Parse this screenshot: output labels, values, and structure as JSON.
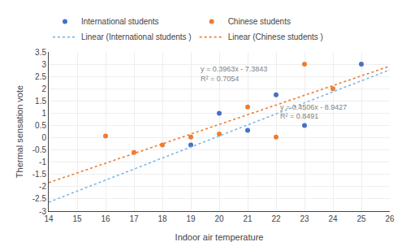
{
  "chart_data": {
    "type": "scatter",
    "xlabel": "Indoor air temperature",
    "ylabel": "Thermal sensation vote",
    "series": [
      {
        "name": "International students",
        "type": "scatter",
        "marker": "circle",
        "color": "#4472C4",
        "x": [
          19,
          20,
          21,
          22,
          23,
          25
        ],
        "values": [
          -0.3,
          1.0,
          0.3,
          1.75,
          0.5,
          3.0
        ]
      },
      {
        "name": "Chinese students",
        "type": "scatter",
        "marker": "circle",
        "color": "#ED7D31",
        "x": [
          16,
          17,
          18,
          19,
          20,
          21,
          22,
          23,
          24
        ],
        "values": [
          0.07,
          -0.6,
          -0.3,
          0.03,
          0.15,
          1.25,
          0.03,
          3.0,
          2.0
        ]
      },
      {
        "name": "Linear (International students )",
        "type": "line",
        "line_style": "dotted",
        "color": "#7DB8E8",
        "x": [
          14,
          26
        ],
        "values": [
          -2.6343,
          2.7729
        ]
      },
      {
        "name": "Linear (Chinese students )",
        "type": "line",
        "line_style": "dotted",
        "color": "#ED7D31",
        "x": [
          14,
          26
        ],
        "values": [
          -1.8361,
          2.9195
        ]
      }
    ],
    "annotations": [
      {
        "text": "y = 0.3963x - 7.3843",
        "x": 19.3,
        "y": 2.6,
        "color": "#808080"
      },
      {
        "text": "R² = 0.7054",
        "x": 19.3,
        "y": 2.2,
        "color": "#808080"
      },
      {
        "text": "y = 0.4506x - 8.9427",
        "x": 22.1,
        "y": 1.05,
        "color": "#808080"
      },
      {
        "text": "R² = 0.8491",
        "x": 22.1,
        "y": 0.68,
        "color": "#808080"
      }
    ],
    "xlim": [
      14,
      26
    ],
    "ylim": [
      -3,
      3.5
    ],
    "xticks": [
      14,
      15,
      16,
      17,
      18,
      19,
      20,
      21,
      22,
      23,
      24,
      25,
      26
    ],
    "yticks": [
      -3,
      -2.5,
      -2,
      -1.5,
      -1,
      -0.5,
      0,
      0.5,
      1,
      1.5,
      2,
      2.5,
      3,
      3.5
    ],
    "grid": true,
    "legend": "top"
  }
}
